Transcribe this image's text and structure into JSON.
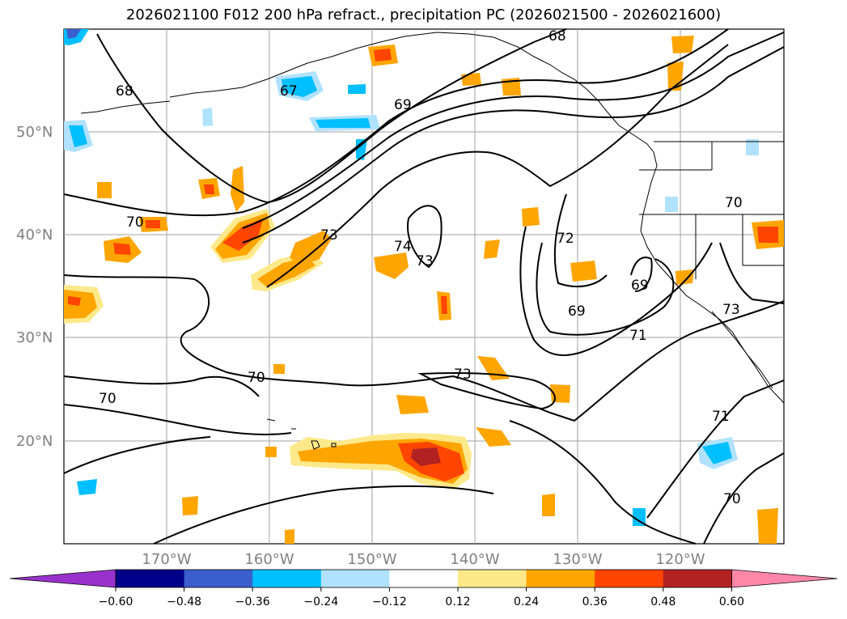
{
  "title": "2026021100 F012 200 hPa refract., precipitation PC (2026021500 - 2026021600)",
  "lat_labels": [
    "50°N",
    "40°N",
    "30°N",
    "20°N"
  ],
  "lon_labels": [
    "170°W",
    "160°W",
    "150°W",
    "140°W",
    "130°W",
    "120°W"
  ],
  "contour_labels": [
    "68",
    "67",
    "68",
    "69",
    "70",
    "73",
    "74",
    "73",
    "72",
    "70",
    "69",
    "69",
    "73",
    "70",
    "70",
    "73",
    "71",
    "71",
    "70"
  ],
  "colorbar": {
    "ticks": [
      "−0.60",
      "−0.48",
      "−0.36",
      "−0.24",
      "−0.12",
      "0.12",
      "0.24",
      "0.36",
      "0.48",
      "0.60"
    ],
    "colors": [
      "#9932cc",
      "#00008b",
      "#3a5fcd",
      "#00bfff",
      "#b0e2ff",
      "#ffffff",
      "#fde98a",
      "#ffa500",
      "#ff4500",
      "#b22222",
      "#ff86a8"
    ]
  }
}
